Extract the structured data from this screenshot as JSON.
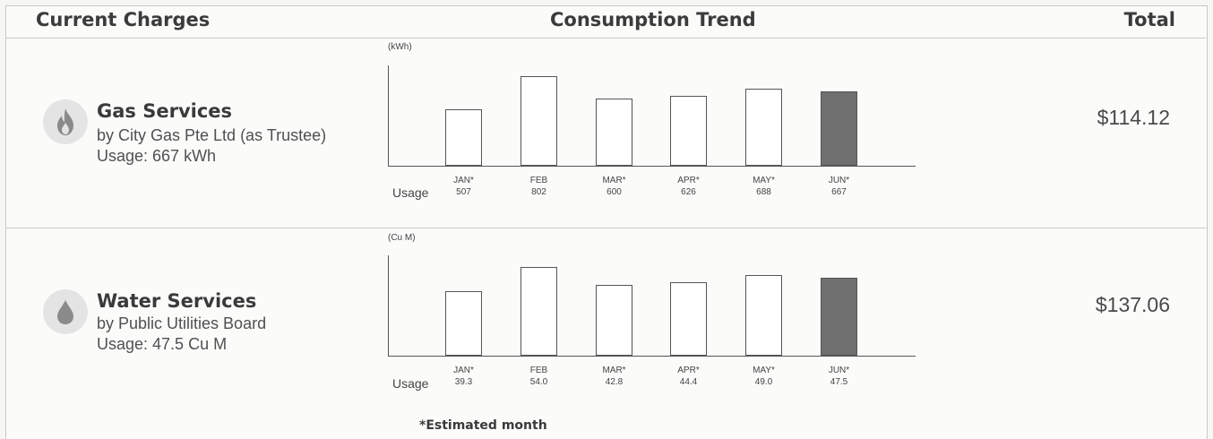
{
  "header": {
    "current_charges": "Current Charges",
    "consumption_trend": "Consumption Trend",
    "total": "Total"
  },
  "services": [
    {
      "name": "Gas Services",
      "provider": "by City Gas Pte Ltd (as Trustee)",
      "usage": "Usage: 667 kWh",
      "total": "$114.12",
      "icon": "flame-icon",
      "unit": "(kWh)",
      "usage_label": "Usage"
    },
    {
      "name": "Water Services",
      "provider": "by Public Utilities Board",
      "usage": "Usage: 47.5 Cu M",
      "total": "$137.06",
      "icon": "water-drop-icon",
      "unit": "(Cu M)",
      "usage_label": "Usage"
    }
  ],
  "chart_data": [
    {
      "type": "bar",
      "categories": [
        "JAN*",
        "FEB",
        "MAR*",
        "APR*",
        "MAY*",
        "JUN*"
      ],
      "values": [
        507,
        802,
        600,
        626,
        688,
        667
      ],
      "value_labels": [
        "507",
        "802",
        "600",
        "626",
        "688",
        "667"
      ],
      "highlight_index": 5,
      "ylabel": "(kWh)",
      "ylim": [
        0,
        900
      ],
      "grid": false,
      "colors": {
        "bar": "#ffffff",
        "current": "#6f6f6f",
        "stroke": "#555555"
      }
    },
    {
      "type": "bar",
      "categories": [
        "JAN*",
        "FEB",
        "MAR*",
        "APR*",
        "MAY*",
        "JUN*"
      ],
      "values": [
        39.3,
        54.0,
        42.8,
        44.4,
        49.0,
        47.5
      ],
      "value_labels": [
        "39.3",
        "54.0",
        "42.8",
        "44.4",
        "49.0",
        "47.5"
      ],
      "highlight_index": 5,
      "ylabel": "(Cu M)",
      "ylim": [
        0,
        61
      ],
      "grid": false,
      "colors": {
        "bar": "#ffffff",
        "current": "#6f6f6f",
        "stroke": "#555555"
      }
    }
  ],
  "footnote": "*Estimated month"
}
